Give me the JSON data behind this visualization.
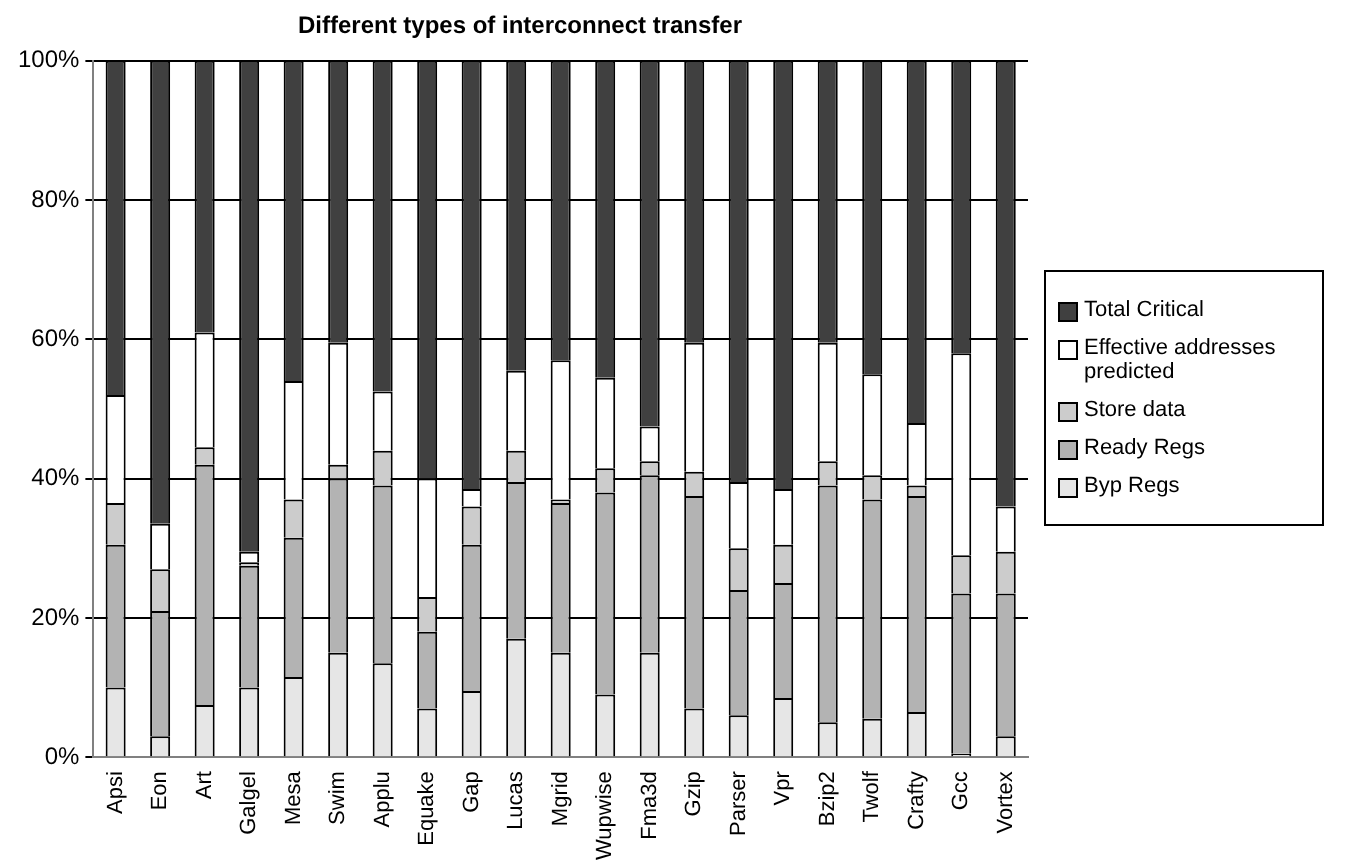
{
  "chart_data": {
    "type": "bar",
    "title": "Different types of interconnect transfer",
    "stacked": true,
    "categories": [
      "Apsi",
      "Eon",
      "Art",
      "Galgel",
      "Mesa",
      "Swim",
      "Applu",
      "Equake",
      "Gap",
      "Lucas",
      "Mgrid",
      "Wupwise",
      "Fma3d",
      "Gzip",
      "Parser",
      "Vpr",
      "Bzip2",
      "Twolf",
      "Crafty",
      "Gcc",
      "Vortex"
    ],
    "series": [
      {
        "name": "Byp Regs",
        "color": "#e6e6e6",
        "values": [
          10,
          3,
          7.5,
          10,
          11.5,
          15,
          13.5,
          7,
          9.5,
          17,
          15,
          9,
          15,
          7,
          6,
          8.5,
          5,
          5.5,
          6.5,
          0.5,
          3
        ]
      },
      {
        "name": "Ready Regs",
        "color": "#b3b3b3",
        "values": [
          20.5,
          18,
          34.5,
          17.5,
          20,
          25,
          25.5,
          11,
          21,
          22.5,
          21.5,
          29,
          25.5,
          30.5,
          18,
          16.5,
          34,
          31.5,
          31,
          23,
          20.5
        ]
      },
      {
        "name": "Store data",
        "color": "#cccccc",
        "values": [
          6,
          6,
          2.5,
          0.5,
          5.5,
          2,
          5,
          5,
          5.5,
          4.5,
          0.5,
          3.5,
          2,
          3.5,
          6,
          5.5,
          3.5,
          3.5,
          1.5,
          5.5,
          6
        ]
      },
      {
        "name": "Effective addresses predicted",
        "color": "#ffffff",
        "values": [
          15.5,
          6.5,
          16.5,
          1.5,
          17,
          17.5,
          8.5,
          17,
          2.5,
          11.5,
          20,
          13,
          5,
          18.5,
          9.5,
          8,
          17,
          14.5,
          9,
          29,
          6.5
        ]
      },
      {
        "name": "Total Critical",
        "color": "#404040",
        "values": [
          48,
          66.5,
          39,
          70.5,
          46,
          40.5,
          47.5,
          60,
          61.5,
          44.5,
          43,
          45.5,
          52.5,
          40.5,
          60.5,
          61.5,
          40.5,
          45,
          52,
          42,
          64
        ]
      }
    ],
    "ylim": [
      0,
      100
    ],
    "yticks": [
      {
        "value": 0,
        "label": "0%"
      },
      {
        "value": 20,
        "label": "20%"
      },
      {
        "value": 40,
        "label": "40%"
      },
      {
        "value": 60,
        "label": "60%"
      },
      {
        "value": 80,
        "label": "80%"
      },
      {
        "value": 100,
        "label": "100%"
      }
    ],
    "grid": "y",
    "legend": "right"
  }
}
